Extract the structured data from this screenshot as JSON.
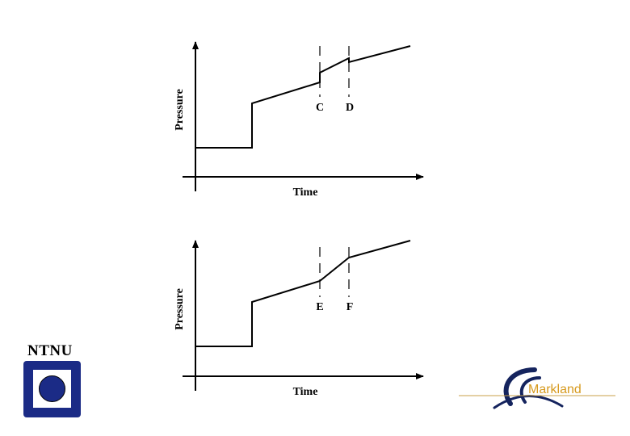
{
  "diagrams": [
    {
      "ylabel": "Pressure",
      "xlabel": "Time",
      "markers": [
        "C",
        "D"
      ]
    },
    {
      "ylabel": "Pressure",
      "xlabel": "Time",
      "markers": [
        "E",
        "F"
      ]
    }
  ],
  "logos": {
    "left": {
      "text": "NTNU",
      "square_color": "#1b2b86"
    },
    "right": {
      "text": "Markland",
      "text_color": "#d79a1e",
      "swoosh_color": "#15245e"
    }
  }
}
